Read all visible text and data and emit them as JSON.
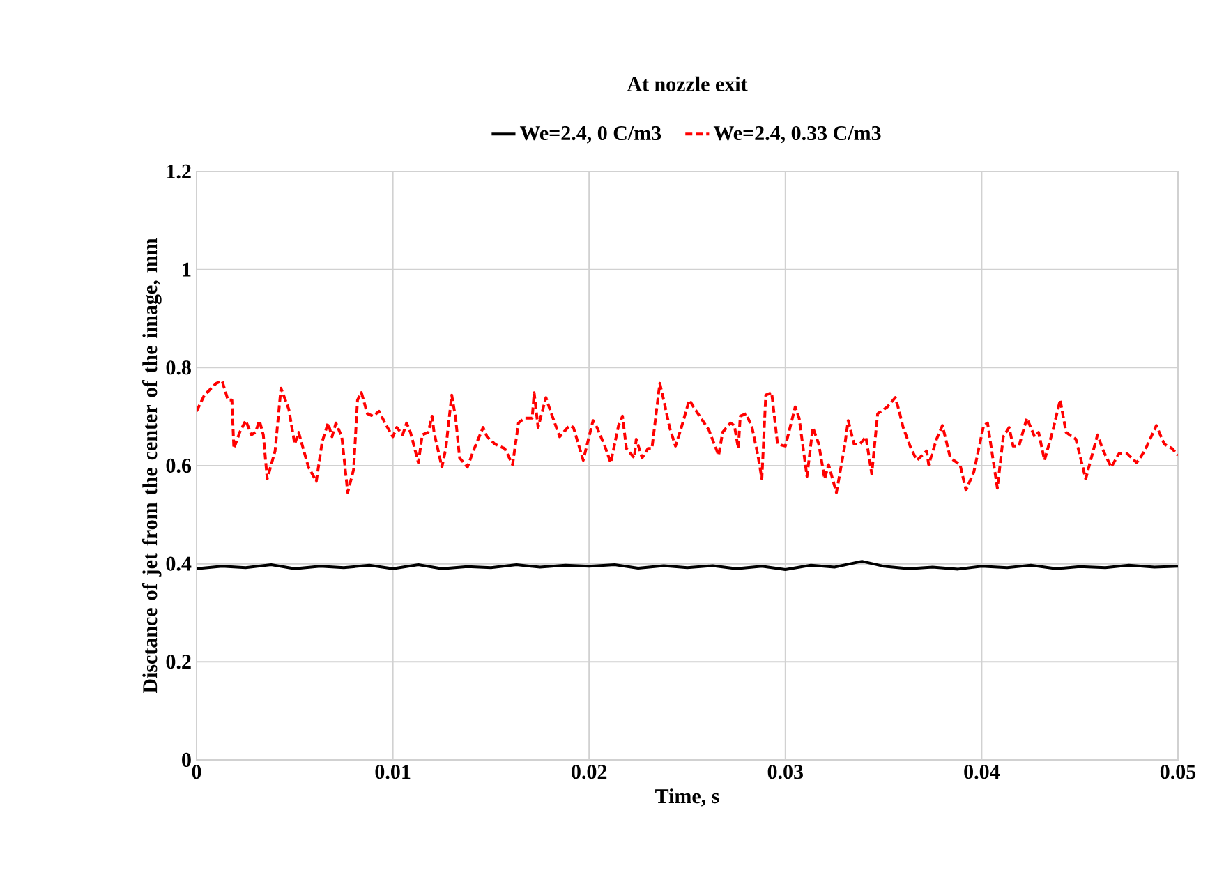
{
  "chart_data": {
    "type": "line",
    "title": "At nozzle exit",
    "xlabel": "Time, s",
    "ylabel": "Disctance of jet from the center of the image, mm",
    "xlim": [
      0,
      0.05
    ],
    "xticks": [
      0,
      0.01,
      0.02,
      0.03,
      0.04,
      0.05
    ],
    "ylim": [
      0,
      1.2
    ],
    "yticks": [
      0,
      0.2,
      0.4,
      0.6,
      0.8,
      1,
      1.2
    ],
    "grid": true,
    "legend": "top",
    "marker": "none",
    "series": [
      {
        "name": "We=2.4, 0 C/m3",
        "color": "#000000",
        "line_style": "solid",
        "x": [
          0,
          0.0013,
          0.0025,
          0.0038,
          0.005,
          0.0063,
          0.0075,
          0.0088,
          0.01,
          0.0113,
          0.0125,
          0.0138,
          0.015,
          0.0163,
          0.0175,
          0.0188,
          0.02,
          0.0213,
          0.0225,
          0.0238,
          0.025,
          0.0263,
          0.0275,
          0.0288,
          0.03,
          0.0313,
          0.0325,
          0.0339,
          0.035,
          0.0363,
          0.0375,
          0.0388,
          0.04,
          0.0413,
          0.0425,
          0.0438,
          0.045,
          0.0463,
          0.0475,
          0.0488,
          0.05
        ],
        "values": [
          0.39,
          0.395,
          0.392,
          0.398,
          0.39,
          0.395,
          0.392,
          0.397,
          0.39,
          0.398,
          0.39,
          0.394,
          0.392,
          0.398,
          0.393,
          0.397,
          0.395,
          0.398,
          0.391,
          0.396,
          0.392,
          0.396,
          0.39,
          0.395,
          0.388,
          0.397,
          0.393,
          0.405,
          0.395,
          0.39,
          0.393,
          0.389,
          0.395,
          0.392,
          0.397,
          0.39,
          0.394,
          0.392,
          0.397,
          0.393,
          0.395
        ]
      },
      {
        "name": "We=2.4, 0.33 C/m3",
        "color": "#ff0000",
        "line_style": "dashed",
        "x": [
          0,
          0.0004,
          0.001,
          0.0013,
          0.0016,
          0.0018,
          0.0019,
          0.0022,
          0.0025,
          0.0028,
          0.003,
          0.0032,
          0.0034,
          0.0036,
          0.004,
          0.0043,
          0.0047,
          0.005,
          0.0052,
          0.0057,
          0.0061,
          0.0064,
          0.0067,
          0.0069,
          0.0071,
          0.0074,
          0.0077,
          0.008,
          0.0082,
          0.0084,
          0.0087,
          0.009,
          0.0093,
          0.0096,
          0.01,
          0.0102,
          0.0105,
          0.0107,
          0.0109,
          0.0113,
          0.0115,
          0.0118,
          0.012,
          0.0121,
          0.0125,
          0.0127,
          0.013,
          0.0132,
          0.0134,
          0.0138,
          0.0141,
          0.0144,
          0.0146,
          0.0148,
          0.0152,
          0.0157,
          0.0161,
          0.0164,
          0.0167,
          0.0171,
          0.0172,
          0.0174,
          0.0178,
          0.018,
          0.0185,
          0.019,
          0.0192,
          0.0197,
          0.0202,
          0.0204,
          0.0208,
          0.0211,
          0.0215,
          0.0217,
          0.0219,
          0.0223,
          0.0224,
          0.0227,
          0.023,
          0.0232,
          0.0236,
          0.0238,
          0.0241,
          0.0244,
          0.0247,
          0.0251,
          0.0254,
          0.0261,
          0.0266,
          0.0268,
          0.0272,
          0.0274,
          0.0276,
          0.0277,
          0.028,
          0.0283,
          0.0286,
          0.0288,
          0.029,
          0.0293,
          0.0296,
          0.03,
          0.0305,
          0.0307,
          0.0311,
          0.0314,
          0.0317,
          0.032,
          0.0322,
          0.0326,
          0.033,
          0.0332,
          0.0335,
          0.0338,
          0.0341,
          0.0344,
          0.0347,
          0.0352,
          0.0356,
          0.0358,
          0.036,
          0.0364,
          0.0367,
          0.0372,
          0.0373,
          0.0377,
          0.038,
          0.0384,
          0.0389,
          0.0392,
          0.0396,
          0.0401,
          0.0403,
          0.0408,
          0.0411,
          0.0414,
          0.0416,
          0.0419,
          0.0423,
          0.0427,
          0.0429,
          0.0432,
          0.0436,
          0.044,
          0.0443,
          0.0448,
          0.0453,
          0.0459,
          0.0462,
          0.0466,
          0.047,
          0.0474,
          0.0479,
          0.0483,
          0.0489,
          0.0493,
          0.0497,
          0.05
        ],
        "values": [
          0.711,
          0.744,
          0.768,
          0.773,
          0.734,
          0.734,
          0.635,
          0.668,
          0.692,
          0.663,
          0.668,
          0.692,
          0.663,
          0.573,
          0.63,
          0.758,
          0.715,
          0.644,
          0.668,
          0.597,
          0.568,
          0.649,
          0.687,
          0.659,
          0.687,
          0.659,
          0.545,
          0.592,
          0.734,
          0.749,
          0.706,
          0.701,
          0.711,
          0.687,
          0.659,
          0.678,
          0.663,
          0.687,
          0.668,
          0.606,
          0.663,
          0.668,
          0.701,
          0.668,
          0.597,
          0.635,
          0.744,
          0.697,
          0.616,
          0.597,
          0.63,
          0.659,
          0.678,
          0.659,
          0.644,
          0.635,
          0.602,
          0.687,
          0.697,
          0.697,
          0.749,
          0.678,
          0.739,
          0.715,
          0.659,
          0.682,
          0.678,
          0.611,
          0.692,
          0.678,
          0.64,
          0.606,
          0.682,
          0.701,
          0.635,
          0.616,
          0.654,
          0.616,
          0.635,
          0.635,
          0.768,
          0.734,
          0.678,
          0.64,
          0.678,
          0.734,
          0.715,
          0.673,
          0.621,
          0.668,
          0.687,
          0.682,
          0.635,
          0.701,
          0.706,
          0.678,
          0.621,
          0.573,
          0.744,
          0.749,
          0.644,
          0.64,
          0.72,
          0.697,
          0.578,
          0.678,
          0.644,
          0.573,
          0.602,
          0.545,
          0.635,
          0.692,
          0.644,
          0.644,
          0.659,
          0.583,
          0.706,
          0.72,
          0.739,
          0.711,
          0.678,
          0.635,
          0.611,
          0.63,
          0.602,
          0.654,
          0.682,
          0.616,
          0.602,
          0.55,
          0.587,
          0.682,
          0.687,
          0.554,
          0.659,
          0.678,
          0.64,
          0.64,
          0.697,
          0.659,
          0.668,
          0.611,
          0.668,
          0.734,
          0.668,
          0.654,
          0.573,
          0.663,
          0.63,
          0.597,
          0.625,
          0.625,
          0.606,
          0.63,
          0.682,
          0.644,
          0.635,
          0.621
        ]
      }
    ]
  }
}
